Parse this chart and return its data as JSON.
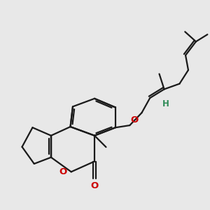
{
  "bg_color": "#e8e8e8",
  "bond_color": "#1a1a1a",
  "oxygen_color": "#cc0000",
  "hydrogen_color": "#2e8b57",
  "lw": 1.6,
  "figsize": [
    3.0,
    3.0
  ],
  "dpi": 100,
  "xlim": [
    -3.8,
    3.8
  ],
  "ylim": [
    -3.8,
    3.8
  ]
}
